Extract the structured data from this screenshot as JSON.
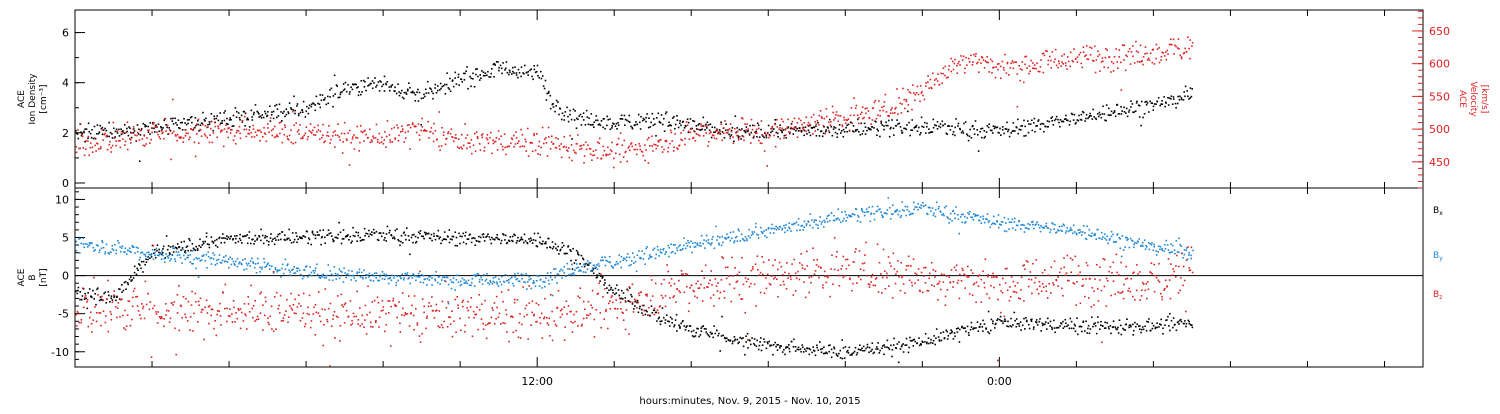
{
  "chart_data": {
    "type": "scatter",
    "xlabel": "hours:minutes, Nov.  9, 2015 - Nov. 10, 2015",
    "x_tick_labels": [
      "12:00",
      "0:00"
    ],
    "x_range_hours": [
      -12.0,
      23.0
    ],
    "x_data_end_hours": 1.0,
    "panels": [
      {
        "id": "plasma",
        "ylabel_lines": [
          "ACE",
          "Ion Density",
          "[cm⁻³]"
        ],
        "ylabel_right_lines": [
          "ACE",
          "Velocity",
          "[km/s]"
        ],
        "left_axis": {
          "min": -0.2,
          "max": 6.9,
          "ticks": [
            "0",
            "2",
            "4",
            "6"
          ],
          "color": "#000000"
        },
        "right_axis": {
          "min": 410,
          "max": 682,
          "ticks": [
            "450",
            "500",
            "550",
            "600",
            "650"
          ],
          "color": "#dd2222"
        },
        "series": [
          {
            "axis": "left",
            "color": "#000000",
            "anchors": [
              [
                -12.0,
                2.0
              ],
              [
                -10.0,
                2.2
              ],
              [
                -8.0,
                2.6
              ],
              [
                -6.0,
                3.0
              ],
              [
                -5.0,
                3.8
              ],
              [
                -4.0,
                4.0
              ],
              [
                -3.0,
                3.5
              ],
              [
                -2.0,
                4.2
              ],
              [
                -1.0,
                4.6
              ],
              [
                0.0,
                4.4
              ],
              [
                0.4,
                3.2
              ],
              [
                1.0,
                2.6
              ],
              [
                2.0,
                2.4
              ],
              [
                3.0,
                2.6
              ],
              [
                4.0,
                2.3
              ],
              [
                5.0,
                2.0
              ],
              [
                6.0,
                2.1
              ],
              [
                8.0,
                2.2
              ],
              [
                10.0,
                2.3
              ],
              [
                12.0,
                2.1
              ],
              [
                14.0,
                2.6
              ],
              [
                16.0,
                3.2
              ],
              [
                17.0,
                3.6
              ]
            ],
            "noise": 0.35
          },
          {
            "axis": "right",
            "color": "#dd2222",
            "anchors": [
              [
                -12.0,
                475
              ],
              [
                -10.0,
                495
              ],
              [
                -8.0,
                500
              ],
              [
                -6.0,
                495
              ],
              [
                -4.0,
                490
              ],
              [
                -3.0,
                500
              ],
              [
                -2.0,
                482
              ],
              [
                0.0,
                482
              ],
              [
                1.0,
                475
              ],
              [
                2.0,
                465
              ],
              [
                3.0,
                478
              ],
              [
                4.0,
                495
              ],
              [
                5.0,
                500
              ],
              [
                6.0,
                495
              ],
              [
                7.0,
                510
              ],
              [
                8.0,
                520
              ],
              [
                9.0,
                530
              ],
              [
                10.0,
                560
              ],
              [
                11.0,
                610
              ],
              [
                12.0,
                595
              ],
              [
                14.0,
                610
              ],
              [
                16.0,
                615
              ],
              [
                17.0,
                630
              ]
            ],
            "noise": 20
          }
        ]
      },
      {
        "id": "magnetic",
        "ylabel_lines": [
          "ACE",
          "B",
          "[nT]"
        ],
        "left_axis": {
          "min": -12.0,
          "max": 11.5,
          "ticks": [
            "-10",
            "-5",
            "0",
            "5",
            "10"
          ],
          "color": "#000000"
        },
        "legend": [
          {
            "label": "B",
            "sub": "x",
            "color": "#000000"
          },
          {
            "label": "B",
            "sub": "y",
            "color": "#1f87d6"
          },
          {
            "label": "B",
            "sub": "z",
            "color": "#dd2222"
          }
        ],
        "series": [
          {
            "name": "Bx",
            "color": "#000000",
            "anchors": [
              [
                -12.0,
                -2.0
              ],
              [
                -11.0,
                -3.0
              ],
              [
                -10.0,
                3.0
              ],
              [
                -8.0,
                5.0
              ],
              [
                -6.0,
                5.2
              ],
              [
                -4.0,
                5.5
              ],
              [
                -2.0,
                5.0
              ],
              [
                0.0,
                4.8
              ],
              [
                1.0,
                3.0
              ],
              [
                2.0,
                -2.0
              ],
              [
                3.0,
                -5.0
              ],
              [
                4.0,
                -7.0
              ],
              [
                6.0,
                -9.0
              ],
              [
                8.0,
                -10.0
              ],
              [
                10.0,
                -8.5
              ],
              [
                12.0,
                -6.0
              ],
              [
                14.0,
                -6.5
              ],
              [
                16.0,
                -6.5
              ],
              [
                17.0,
                -6.0
              ]
            ],
            "noise": 1.0
          },
          {
            "name": "By",
            "color": "#1f87d6",
            "anchors": [
              [
                -12.0,
                4.5
              ],
              [
                -10.0,
                3.0
              ],
              [
                -8.0,
                2.0
              ],
              [
                -6.0,
                0.5
              ],
              [
                -4.0,
                0.0
              ],
              [
                -2.0,
                -0.5
              ],
              [
                0.0,
                -0.5
              ],
              [
                1.0,
                1.0
              ],
              [
                2.0,
                2.0
              ],
              [
                4.0,
                4.0
              ],
              [
                6.0,
                6.0
              ],
              [
                8.0,
                8.0
              ],
              [
                10.0,
                9.0
              ],
              [
                12.0,
                7.0
              ],
              [
                14.0,
                6.0
              ],
              [
                16.0,
                4.0
              ],
              [
                17.0,
                3.0
              ]
            ],
            "noise": 1.0
          },
          {
            "name": "Bz",
            "color": "#dd2222",
            "anchors": [
              [
                -12.0,
                -4.5
              ],
              [
                -10.0,
                -4.0
              ],
              [
                -8.0,
                -4.5
              ],
              [
                -6.0,
                -4.5
              ],
              [
                -4.0,
                -5.0
              ],
              [
                -2.0,
                -5.0
              ],
              [
                0.0,
                -5.0
              ],
              [
                2.0,
                -4.0
              ],
              [
                3.0,
                -2.0
              ],
              [
                4.0,
                -1.0
              ],
              [
                6.0,
                0.0
              ],
              [
                8.0,
                1.0
              ],
              [
                10.0,
                0.0
              ],
              [
                12.0,
                -1.0
              ],
              [
                14.0,
                0.0
              ],
              [
                16.0,
                -1.0
              ],
              [
                17.0,
                2.0
              ]
            ],
            "noise": 3.2
          }
        ]
      }
    ]
  }
}
